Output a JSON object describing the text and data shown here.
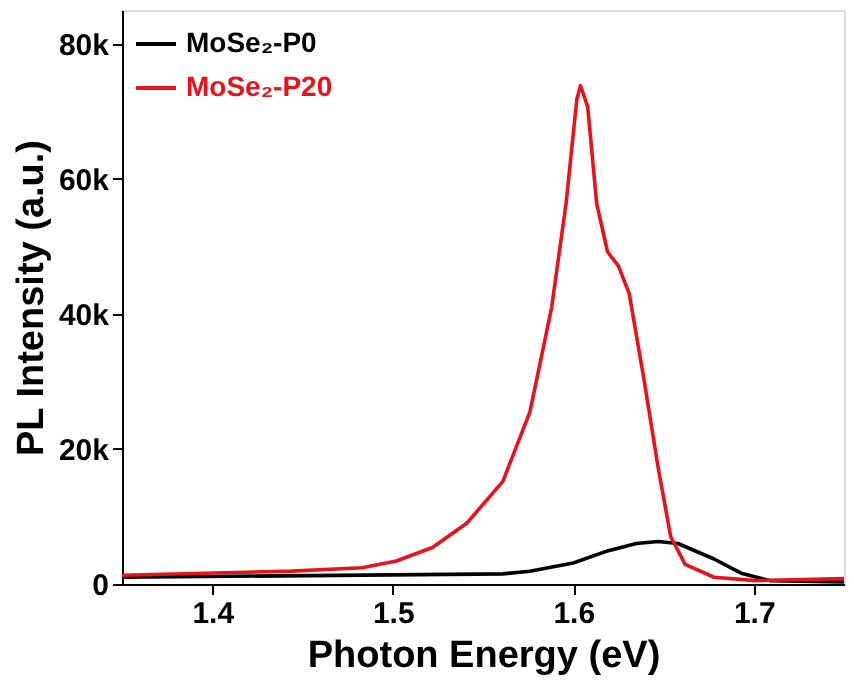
{
  "chart_data": {
    "type": "line",
    "xlabel": "Photon Energy (eV)",
    "ylabel": "PL Intensity (a.u.)",
    "xlim": [
      1.35,
      1.75
    ],
    "xticks": [
      1.4,
      1.5,
      1.6,
      1.7
    ],
    "ylim": [
      0,
      85000
    ],
    "yticks": [
      0,
      {
        "value": 20000,
        "label": "20k"
      },
      {
        "value": 40000,
        "label": "40k"
      },
      {
        "value": 60000,
        "label": "60k"
      },
      {
        "value": 80000,
        "label": "80k"
      }
    ],
    "grid": false,
    "legend": "top left",
    "marker": "none",
    "line_style": "solid",
    "series": [
      {
        "name": "MoSe₂-P0",
        "color": "#000000",
        "x": [
          1.35,
          1.561,
          1.576,
          1.6,
          1.619,
          1.635,
          1.647,
          1.658,
          1.678,
          1.693,
          1.709,
          1.75
        ],
        "values": [
          1000,
          1500,
          1900,
          3100,
          4900,
          6000,
          6300,
          6000,
          3700,
          1600,
          500,
          300
        ]
      },
      {
        "name": "MoSe₂-P20",
        "color": "#e8121b",
        "x": [
          1.35,
          1.444,
          1.483,
          1.502,
          1.522,
          1.541,
          1.561,
          1.576,
          1.588,
          1.596,
          1.602,
          1.604,
          1.608,
          1.613,
          1.619,
          1.625,
          1.631,
          1.639,
          1.647,
          1.654,
          1.662,
          1.678,
          1.701,
          1.75
        ],
        "values": [
          1300,
          1900,
          2400,
          3400,
          5400,
          9000,
          15200,
          25500,
          40900,
          56300,
          71800,
          73800,
          70700,
          56300,
          49200,
          47100,
          43000,
          30600,
          17300,
          7000,
          2900,
          1000,
          500,
          800
        ]
      }
    ]
  }
}
